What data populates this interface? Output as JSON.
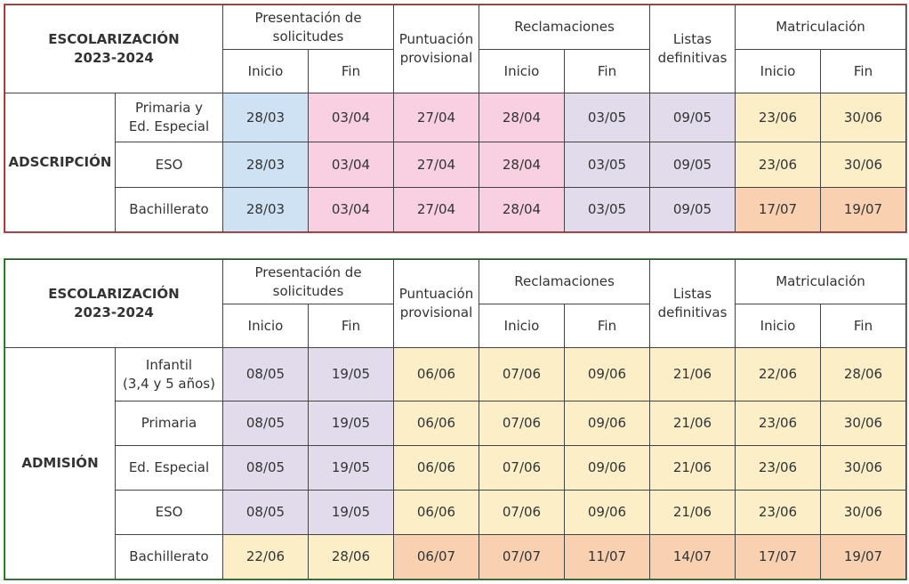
{
  "tables": [
    {
      "id": "adscripcion",
      "corner_line1": "ESCOLARIZACIÓN",
      "corner_line2": "2023-2024",
      "headers": {
        "presentacion": "Presentación de solicitudes",
        "puntuacion": "Puntuación provisional",
        "reclamaciones": "Reclamaciones",
        "listas": "Listas definitivas",
        "matriculacion": "Matriculación",
        "inicio": "Inicio",
        "fin": "Fin"
      },
      "group_label": "ADSCRIPCIÓN",
      "rows": [
        {
          "label_line1": "Primaria y",
          "label_line2": "Ed. Especial",
          "cells": [
            "28/03",
            "03/04",
            "27/04",
            "28/04",
            "03/05",
            "09/05",
            "23/06",
            "30/06"
          ],
          "colors": [
            "#cfe2f3",
            "#f8d0e1",
            "#f8d0e1",
            "#f8d0e1",
            "#e1dbec",
            "#e1dbec",
            "#fcefc8",
            "#fcefc8"
          ]
        },
        {
          "label_line1": "ESO",
          "label_line2": "",
          "cells": [
            "28/03",
            "03/04",
            "27/04",
            "28/04",
            "03/05",
            "09/05",
            "23/06",
            "30/06"
          ],
          "colors": [
            "#cfe2f3",
            "#f8d0e1",
            "#f8d0e1",
            "#f8d0e1",
            "#e1dbec",
            "#e1dbec",
            "#fcefc8",
            "#fcefc8"
          ]
        },
        {
          "label_line1": "Bachillerato",
          "label_line2": "",
          "cells": [
            "28/03",
            "03/04",
            "27/04",
            "28/04",
            "03/05",
            "09/05",
            "17/07",
            "19/07"
          ],
          "colors": [
            "#cfe2f3",
            "#f8d0e1",
            "#f8d0e1",
            "#f8d0e1",
            "#e1dbec",
            "#e1dbec",
            "#f9d1b1",
            "#f9d1b1"
          ]
        }
      ]
    },
    {
      "id": "admision",
      "corner_line1": "ESCOLARIZACIÓN",
      "corner_line2": "2023-2024",
      "headers": {
        "presentacion": "Presentación de solicitudes",
        "puntuacion": "Puntuación provisional",
        "reclamaciones": "Reclamaciones",
        "listas": "Listas definitivas",
        "matriculacion": "Matriculación",
        "inicio": "Inicio",
        "fin": "Fin"
      },
      "group_label": "ADMISIÓN",
      "rows": [
        {
          "label_line1": "Infantil",
          "label_line2": "(3,4 y 5 años)",
          "cells": [
            "08/05",
            "19/05",
            "06/06",
            "07/06",
            "09/06",
            "21/06",
            "22/06",
            "28/06"
          ],
          "colors": [
            "#e1dbec",
            "#e1dbec",
            "#fcefc8",
            "#fcefc8",
            "#fcefc8",
            "#fcefc8",
            "#fcefc8",
            "#fcefc8"
          ]
        },
        {
          "label_line1": "Primaria",
          "label_line2": "",
          "cells": [
            "08/05",
            "19/05",
            "06/06",
            "07/06",
            "09/06",
            "21/06",
            "23/06",
            "30/06"
          ],
          "colors": [
            "#e1dbec",
            "#e1dbec",
            "#fcefc8",
            "#fcefc8",
            "#fcefc8",
            "#fcefc8",
            "#fcefc8",
            "#fcefc8"
          ]
        },
        {
          "label_line1": "Ed. Especial",
          "label_line2": "",
          "cells": [
            "08/05",
            "19/05",
            "06/06",
            "07/06",
            "09/06",
            "21/06",
            "23/06",
            "30/06"
          ],
          "colors": [
            "#e1dbec",
            "#e1dbec",
            "#fcefc8",
            "#fcefc8",
            "#fcefc8",
            "#fcefc8",
            "#fcefc8",
            "#fcefc8"
          ]
        },
        {
          "label_line1": "ESO",
          "label_line2": "",
          "cells": [
            "08/05",
            "19/05",
            "06/06",
            "07/06",
            "09/06",
            "21/06",
            "23/06",
            "30/06"
          ],
          "colors": [
            "#e1dbec",
            "#e1dbec",
            "#fcefc8",
            "#fcefc8",
            "#fcefc8",
            "#fcefc8",
            "#fcefc8",
            "#fcefc8"
          ]
        },
        {
          "label_line1": "Bachillerato",
          "label_line2": "",
          "cells": [
            "22/06",
            "28/06",
            "06/07",
            "07/07",
            "11/07",
            "14/07",
            "17/07",
            "19/07"
          ],
          "colors": [
            "#fcefc8",
            "#fcefc8",
            "#f9d1b1",
            "#f9d1b1",
            "#f9d1b1",
            "#f9d1b1",
            "#f9d1b1",
            "#f9d1b1"
          ]
        }
      ]
    }
  ]
}
